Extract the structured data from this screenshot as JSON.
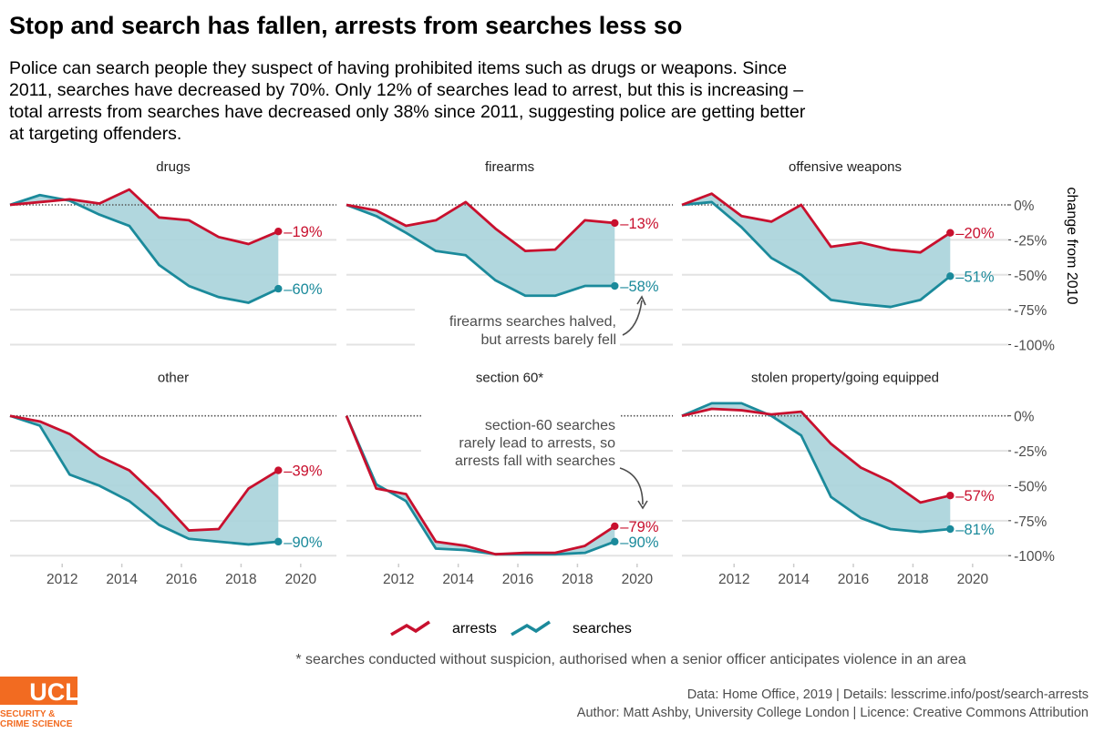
{
  "title": "Stop and search has fallen, arrests from searches less so",
  "subtitle_lines": [
    "Police can search people they suspect of having prohibited items such as drugs or weapons. Since",
    "2011, searches have decreased by 70%. Only 12% of searches lead to arrest, but this is increasing –",
    "total arrests from searches have decreased only 38% since 2011, suggesting police are getting better",
    "at targeting offenders."
  ],
  "chart_data": {
    "type": "line",
    "ylabel": "change from 2010",
    "ylim": [
      -100,
      10
    ],
    "yticks": [
      0,
      -25,
      -50,
      -75,
      -100
    ],
    "ytick_labels": [
      "0%",
      "-25%",
      "-50%",
      "-75%",
      "-100%"
    ],
    "xticks": [
      2012,
      2014,
      2016,
      2018,
      2020
    ],
    "xtick_labels": [
      "2012",
      "2014",
      "2016",
      "2018",
      "2020"
    ],
    "x": [
      2010.25,
      2011.25,
      2012.25,
      2013.25,
      2014.25,
      2015.25,
      2016.25,
      2017.25,
      2018.25,
      2019.25
    ],
    "xlim": [
      2010.25,
      2021.2
    ],
    "grid": true,
    "reference_line": 0,
    "legend_placement": "bottom",
    "colors": {
      "arrests": "#c8102e",
      "searches": "#1b8a9b",
      "gap_fill": "#a9d3da"
    },
    "legend": [
      "arrests",
      "searches"
    ],
    "panels": [
      {
        "name": "drugs",
        "arrests": [
          0,
          2,
          4,
          1,
          11,
          -9,
          -11,
          -23,
          -28,
          -19
        ],
        "searches": [
          0,
          7,
          3,
          -7,
          -15,
          -43,
          -58,
          -66,
          -70,
          -60
        ],
        "arrests_label": "–19%",
        "searches_label": "–60%"
      },
      {
        "name": "firearms",
        "arrests": [
          0,
          -4,
          -15,
          -11,
          2,
          -17,
          -33,
          -32,
          -11,
          -13
        ],
        "searches": [
          0,
          -8,
          -20,
          -33,
          -36,
          -54,
          -65,
          -65,
          -58,
          -58
        ],
        "arrests_label": "–13%",
        "searches_label": "–58%"
      },
      {
        "name": "offensive weapons",
        "arrests": [
          0,
          8,
          -8,
          -12,
          0,
          -30,
          -27,
          -32,
          -34,
          -20
        ],
        "searches": [
          0,
          2,
          -16,
          -38,
          -50,
          -68,
          -71,
          -73,
          -68,
          -51
        ],
        "arrests_label": "–20%",
        "searches_label": "–51%"
      },
      {
        "name": "other",
        "arrests": [
          0,
          -4,
          -13,
          -29,
          -39,
          -59,
          -82,
          -81,
          -52,
          -39
        ],
        "searches": [
          0,
          -7,
          -42,
          -50,
          -61,
          -78,
          -88,
          -90,
          -92,
          -90
        ],
        "arrests_label": "–39%",
        "searches_label": "–90%"
      },
      {
        "name": "section 60*",
        "arrests": [
          0,
          -52,
          -56,
          -90,
          -93,
          -99,
          -98,
          -98,
          -93,
          -79
        ],
        "searches": [
          0,
          -49,
          -61,
          -95,
          -96,
          -99,
          -99,
          -99,
          -98,
          -90
        ],
        "arrests_label": "–79%",
        "searches_label": "–90%"
      },
      {
        "name": "stolen property/going equipped",
        "arrests": [
          0,
          5,
          4,
          1,
          3,
          -20,
          -37,
          -47,
          -62,
          -57
        ],
        "searches": [
          0,
          9,
          9,
          0,
          -14,
          -58,
          -73,
          -81,
          -83,
          -81
        ],
        "arrests_label": "–57%",
        "searches_label": "–81%"
      }
    ],
    "annotations": [
      {
        "panel": "firearms",
        "lines": [
          "firearms searches halved,",
          "but arrests barely fell"
        ]
      },
      {
        "panel": "section 60*",
        "lines": [
          "section-60 searches",
          "rarely lead to arrests, so",
          "arrests fall with searches"
        ]
      }
    ]
  },
  "footnote": "* searches conducted without suspicion, authorised when a senior officer anticipates violence in an area",
  "credits": {
    "line1": "Data: Home Office, 2019 |  Details: lesscrime.info/post/search-arrests",
    "line2": "Author: Matt Ashby, University College London |  Licence: Creative Commons Attribution"
  },
  "logo": {
    "text": "UCL",
    "line1": "SECURITY &",
    "line2": "CRIME SCIENCE",
    "color": "#f26b21"
  }
}
